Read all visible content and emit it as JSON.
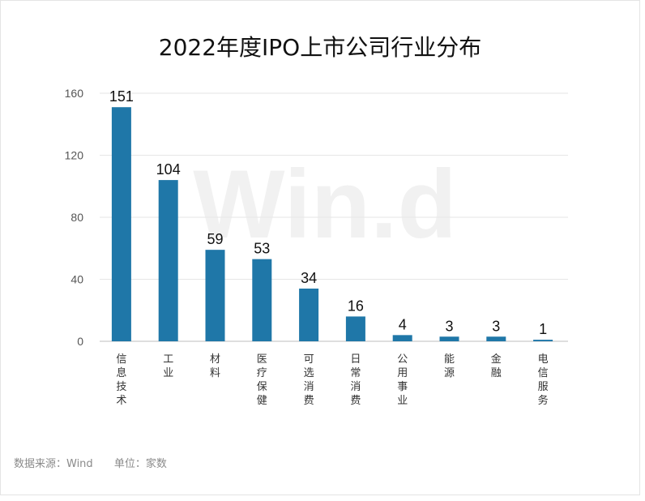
{
  "chart_data": {
    "type": "bar",
    "title": "2022年度IPO上市公司行业分布",
    "categories": [
      "信息技术",
      "工业",
      "材料",
      "医疗保健",
      "可选消费",
      "日常消费",
      "公用事业",
      "能源",
      "金融",
      "电信服务"
    ],
    "values": [
      151,
      104,
      59,
      53,
      34,
      16,
      4,
      3,
      3,
      1
    ],
    "yticks": [
      "0",
      "40",
      "80",
      "120",
      "160"
    ],
    "ylim": [
      0,
      160
    ],
    "grid": true,
    "bar_color": "#1f77a8",
    "watermark": "Win.d"
  },
  "footer": {
    "source": "数据来源：Wind",
    "unit": "单位：家数"
  }
}
